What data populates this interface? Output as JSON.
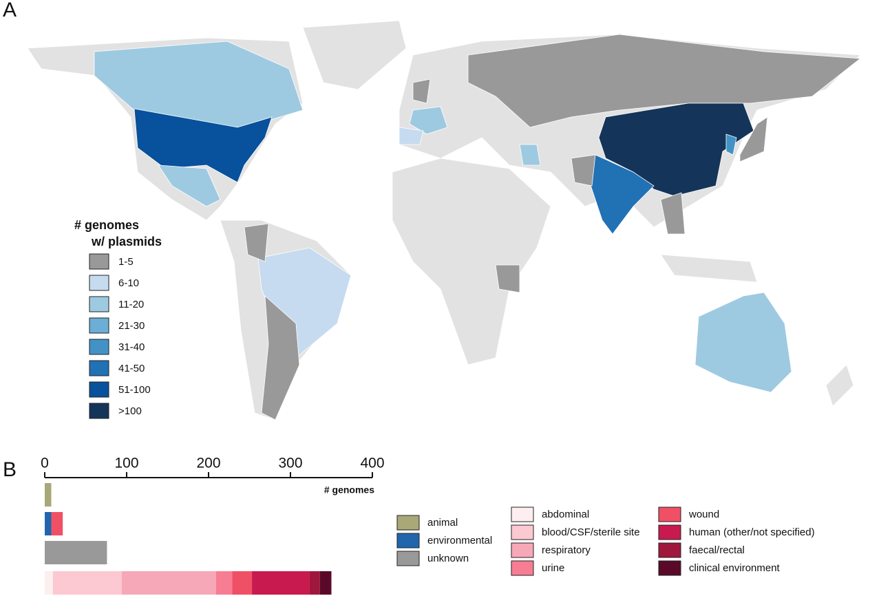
{
  "map_panel": {
    "label": "A",
    "legend_title": [
      "# genomes",
      "w/ plasmids"
    ],
    "bins": [
      {
        "label": "1-5",
        "color": "#999999"
      },
      {
        "label": "6-10",
        "color": "#c6dbef"
      },
      {
        "label": "11-20",
        "color": "#9ecae1"
      },
      {
        "label": "21-30",
        "color": "#6baed6"
      },
      {
        "label": "31-40",
        "color": "#4292c6"
      },
      {
        "label": "41-50",
        "color": "#2171b5"
      },
      {
        "label": "51-100",
        "color": "#08519c"
      },
      {
        "label": ">100",
        "color": "#15345a"
      }
    ]
  },
  "chart_data": {
    "type": "stacked_barh",
    "panel_label": "B",
    "x_label": "# genomes",
    "xlim": [
      0,
      400
    ],
    "xticks": [
      0,
      100,
      200,
      300,
      400
    ],
    "categories": [
      null,
      null,
      null,
      null
    ],
    "series": [
      {
        "name": "animal",
        "color": "#a8a878",
        "values": [
          8,
          null,
          null,
          null
        ]
      },
      {
        "name": "environmental",
        "color": "#2166ac",
        "values": [
          null,
          8,
          null,
          null
        ]
      },
      {
        "name": "unknown",
        "color": "#999999",
        "values": [
          null,
          null,
          76,
          null
        ]
      },
      {
        "name": "abdominal",
        "color": "#fdeef0",
        "values": [
          null,
          null,
          null,
          10
        ]
      },
      {
        "name": "blood/CSF/sterile site",
        "color": "#fcc8d2",
        "values": [
          null,
          null,
          null,
          84
        ]
      },
      {
        "name": "respiratory",
        "color": "#f7a8b8",
        "values": [
          null,
          null,
          null,
          115
        ]
      },
      {
        "name": "urine",
        "color": "#f77d93",
        "values": [
          null,
          null,
          null,
          20
        ]
      },
      {
        "name": "wound",
        "color": "#f05065",
        "values": [
          null,
          14,
          null,
          24
        ]
      },
      {
        "name": "human (other/not specified)",
        "color": "#c81a4f",
        "values": [
          null,
          null,
          null,
          70
        ]
      },
      {
        "name": "faecal/rectal",
        "color": "#a0173e",
        "values": [
          null,
          null,
          null,
          13
        ]
      },
      {
        "name": "clinical environment",
        "color": "#5a0a28",
        "values": [
          null,
          null,
          null,
          14
        ]
      }
    ]
  }
}
